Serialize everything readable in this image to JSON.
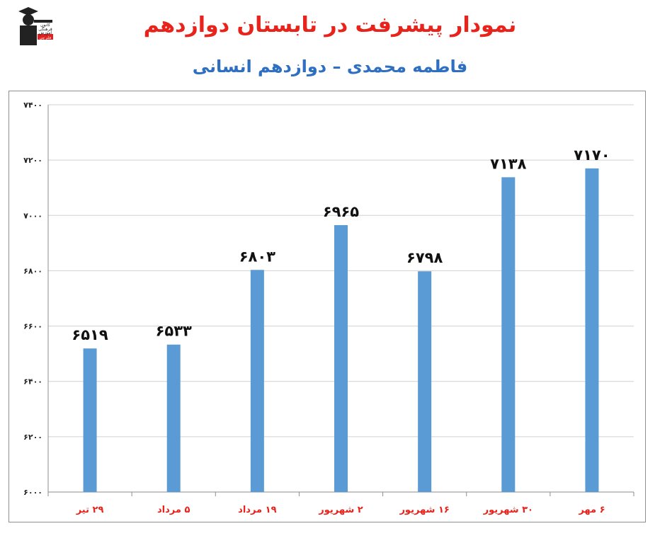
{
  "header": {
    "title": "نمودار پیشرفت در تابستان دوازدهم",
    "subtitle": "فاطمه محمدی – دوازدهم انسانی"
  },
  "logo": {
    "line1": "کانون",
    "line2": "فرهنگی",
    "line3": "آموزش",
    "badge": "قلم چی"
  },
  "colors": {
    "bar": "#5b9bd5",
    "title": "#e8231c",
    "subtitle": "#2f6fc1",
    "category_label": "#e8231c",
    "grid": "#d0d0d0"
  },
  "chart_data": {
    "type": "bar",
    "categories": [
      "۲۹ تیر",
      "۵ مرداد",
      "۱۹ مرداد",
      "۲ شهریور",
      "۱۶ شهریور",
      "۳۰ شهریور",
      "۶ مهر"
    ],
    "values": [
      6519,
      6533,
      6803,
      6965,
      6798,
      7138,
      7170
    ],
    "value_labels": [
      "۶۵۱۹",
      "۶۵۳۳",
      "۶۸۰۳",
      "۶۹۶۵",
      "۶۷۹۸",
      "۷۱۳۸",
      "۷۱۷۰"
    ],
    "ylim": [
      6000,
      7400
    ],
    "yticks": [
      6000,
      6200,
      6400,
      6600,
      6800,
      7000,
      7200,
      7400
    ],
    "ytick_labels": [
      "۶۰۰۰",
      "۶۲۰۰",
      "۶۴۰۰",
      "۶۶۰۰",
      "۶۸۰۰",
      "۷۰۰۰",
      "۷۲۰۰",
      "۷۴۰۰"
    ],
    "grid": true,
    "legend": "none"
  }
}
